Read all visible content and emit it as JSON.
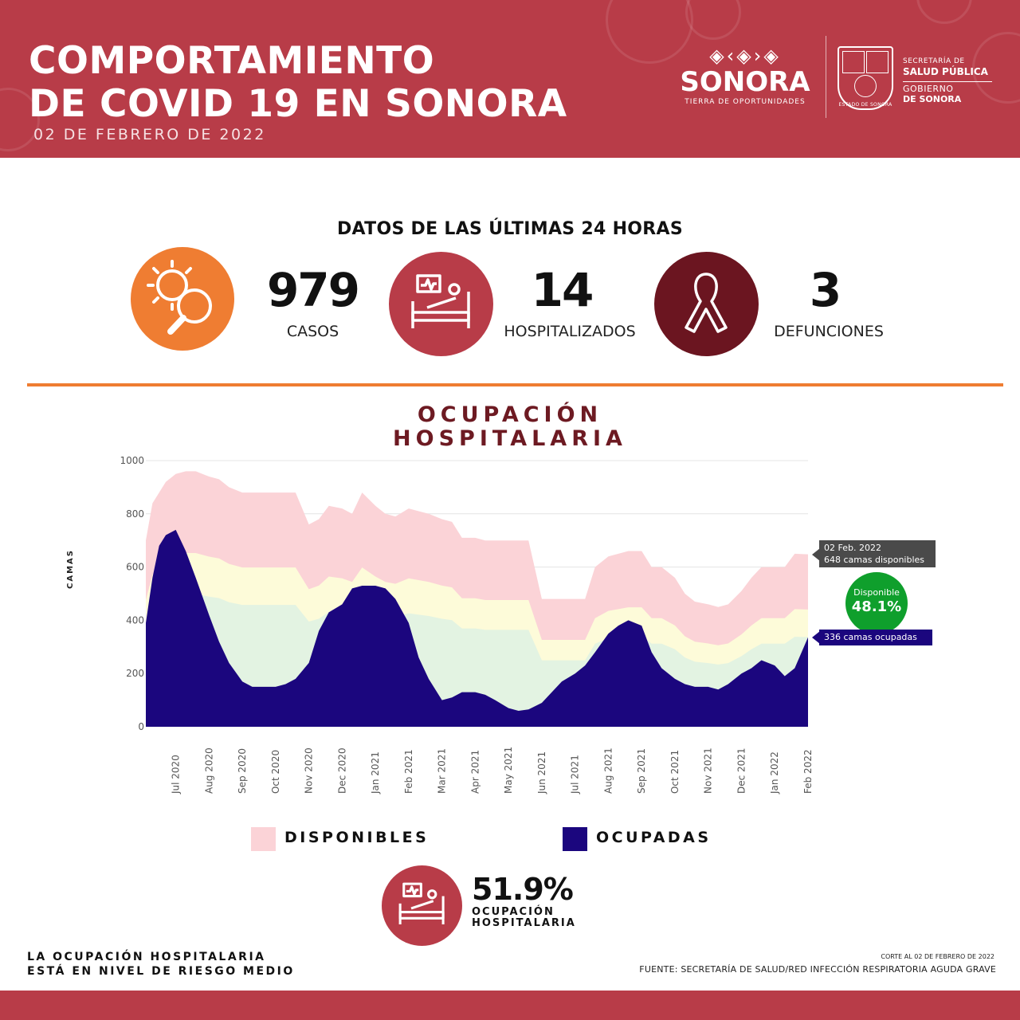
{
  "header": {
    "title_line1": "COMPORTAMIENTO",
    "title_line2": "DE COVID 19 EN SONORA",
    "date": "02 DE FEBRERO DE 2022",
    "sonora_word": "SONORA",
    "sonora_tagline": "TIERRA DE OPORTUNIDADES",
    "shield_caption": "ESTADO DE SONORA",
    "ssp_line1": "SECRETARÍA DE",
    "ssp_line2": "SALUD PÚBLICA",
    "gob_line1": "GOBIERNO",
    "gob_line2": "DE SONORA"
  },
  "section_24h": {
    "title": "DATOS DE LAS ÚLTIMAS 24 HORAS",
    "stats": [
      {
        "value": "979",
        "label": "CASOS",
        "color": "#ef7d32",
        "icon": "virus-magnifier-icon"
      },
      {
        "value": "14",
        "label": "HOSPITALIZADOS",
        "color": "#b83c48",
        "icon": "hospital-bed-icon"
      },
      {
        "value": "3",
        "label": "DEFUNCIONES",
        "color": "#6b1520",
        "icon": "ribbon-icon"
      }
    ]
  },
  "chart_data": {
    "type": "area",
    "title": "OCUPACIÓN HOSPITALARIA",
    "ylabel": "CAMAS",
    "xlabel": "",
    "ylim": [
      0,
      1000
    ],
    "yticks": [
      0,
      200,
      400,
      600,
      800,
      1000
    ],
    "xticks": [
      "Jul 2020",
      "Aug 2020",
      "Sep 2020",
      "Oct 2020",
      "Nov 2020",
      "Dec 2020",
      "Jan 2021",
      "Feb 2021",
      "Mar 2021",
      "Apr 2021",
      "May 2021",
      "Jun 2021",
      "Jul 2021",
      "Aug 2021",
      "Sep 2021",
      "Oct 2021",
      "Nov 2021",
      "Dec 2021",
      "Jan 2022",
      "Feb 2022"
    ],
    "x": [
      -0.9,
      -0.7,
      -0.5,
      -0.3,
      0.0,
      0.3,
      0.6,
      1.0,
      1.3,
      1.6,
      2.0,
      2.3,
      2.6,
      3.0,
      3.3,
      3.6,
      4.0,
      4.3,
      4.6,
      5.0,
      5.3,
      5.6,
      6.0,
      6.3,
      6.6,
      7.0,
      7.3,
      7.6,
      8.0,
      8.3,
      8.6,
      9.0,
      9.3,
      9.6,
      10.0,
      10.3,
      10.6,
      11.0,
      11.3,
      11.6,
      12.0,
      12.3,
      12.6,
      13.0,
      13.3,
      13.6,
      14.0,
      14.3,
      14.6,
      15.0,
      15.3,
      15.6,
      16.0,
      16.3,
      16.6,
      17.0,
      17.3,
      17.6,
      18.0,
      18.3,
      18.6,
      19.0
    ],
    "series": [
      {
        "name": "DISPONIBLES",
        "color": "#fbd3d7",
        "values": [
          700,
          840,
          880,
          920,
          950,
          960,
          960,
          940,
          930,
          900,
          880,
          880,
          880,
          880,
          880,
          880,
          760,
          780,
          830,
          820,
          800,
          880,
          830,
          800,
          790,
          820,
          810,
          800,
          780,
          770,
          710,
          710,
          700,
          700,
          700,
          700,
          700,
          480,
          480,
          480,
          480,
          480,
          600,
          640,
          650,
          660,
          660,
          600,
          600,
          560,
          500,
          470,
          460,
          450,
          460,
          510,
          560,
          600,
          600,
          600,
          650,
          648
        ]
      },
      {
        "name": "OCUPADAS",
        "color": "#1b067e",
        "values": [
          390,
          560,
          680,
          720,
          740,
          660,
          560,
          420,
          320,
          240,
          170,
          150,
          150,
          150,
          160,
          180,
          240,
          360,
          430,
          460,
          520,
          530,
          530,
          520,
          480,
          390,
          260,
          180,
          100,
          110,
          130,
          130,
          120,
          100,
          70,
          60,
          65,
          90,
          130,
          170,
          200,
          230,
          280,
          350,
          380,
          400,
          380,
          280,
          220,
          180,
          160,
          150,
          150,
          140,
          160,
          200,
          220,
          250,
          230,
          190,
          220,
          336
        ]
      }
    ],
    "annotation_date": "02 Feb. 2022",
    "annotation_disponibles": "648 camas disponibles",
    "annotation_ocupadas": "336  camas ocupadas",
    "disponible_label": "Disponible",
    "disponible_pct": "48.1%"
  },
  "legend": {
    "disponibles": "DISPONIBLES",
    "ocupadas": "OCUPADAS"
  },
  "occupancy": {
    "pct": "51.9%",
    "label_line1": "OCUPACIÓN",
    "label_line2": "HOSPITALARIA"
  },
  "footer": {
    "risk_line1": "LA OCUPACIÓN HOSPITALARIA",
    "risk_line2": "ESTÁ EN NIVEL DE RIESGO MEDIO",
    "corte": "CORTE AL 02 DE FEBRERO DE 2022",
    "fuente": "FUENTE: SECRETARÍA DE SALUD/RED INFECCIÓN RESPIRATORIA AGUDA GRAVE"
  }
}
